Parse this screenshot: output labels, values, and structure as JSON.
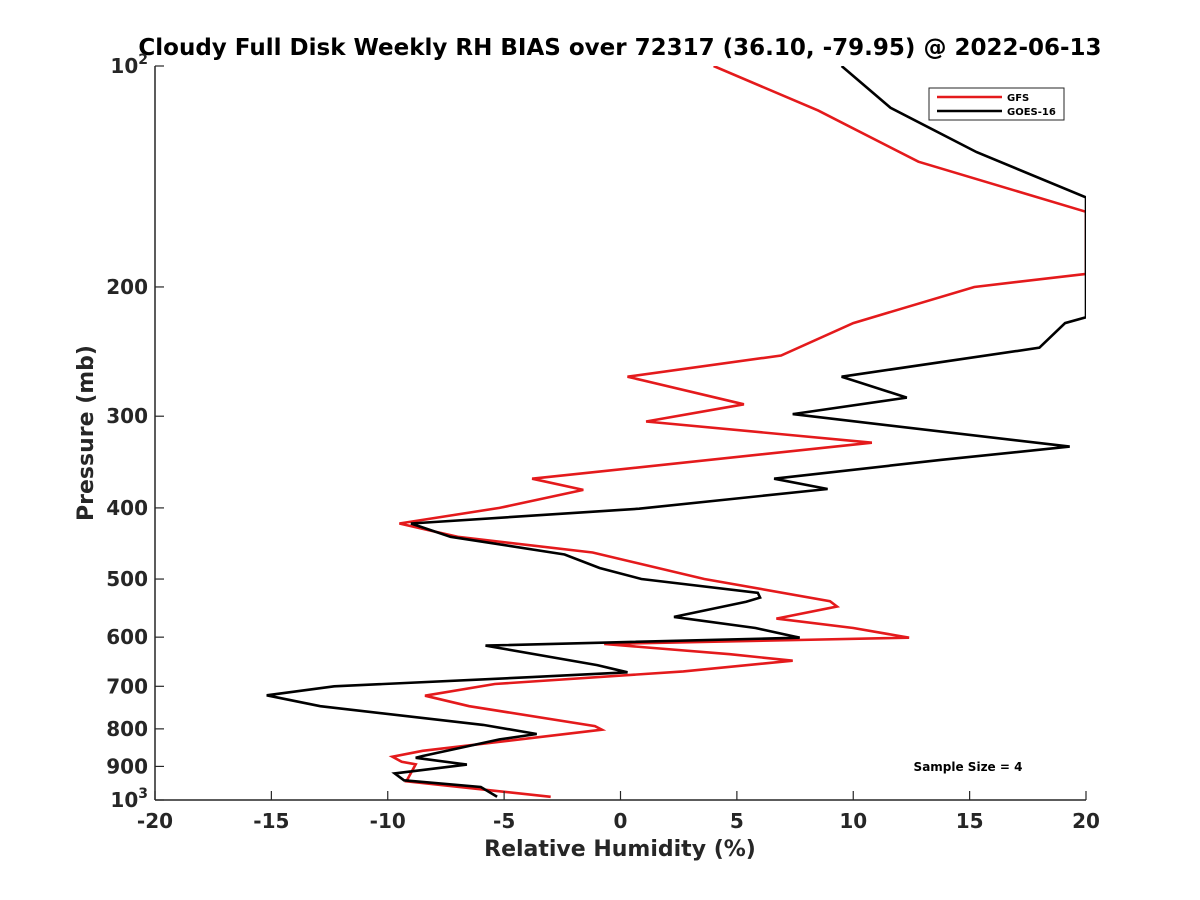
{
  "chart_data": {
    "type": "line",
    "title": "Cloudy Full Disk Weekly RH BIAS over 72317 (36.10, -79.95) @ 2022-06-13",
    "xlabel": "Relative Humidity (%)",
    "ylabel": "Pressure (mb)",
    "xlim": [
      -20,
      20
    ],
    "ylim": [
      100,
      1000
    ],
    "y_scale": "log",
    "y_reversed": true,
    "x_ticks": [
      "-20",
      "-15",
      "-10",
      "-5",
      "0",
      "5",
      "10",
      "15",
      "20"
    ],
    "y_ticks": [
      {
        "value": 100,
        "base": "10",
        "exp": "2"
      },
      {
        "value": 200,
        "label": "200"
      },
      {
        "value": 300,
        "label": "300"
      },
      {
        "value": 400,
        "label": "400"
      },
      {
        "value": 500,
        "label": "500"
      },
      {
        "value": 600,
        "label": "600"
      },
      {
        "value": 700,
        "label": "700"
      },
      {
        "value": 800,
        "label": "800"
      },
      {
        "value": 900,
        "label": "900"
      },
      {
        "value": 1000,
        "base": "10",
        "exp": "3"
      }
    ],
    "grid": false,
    "legend_position": "top-right",
    "annotation": "Sample Size = 4",
    "series": [
      {
        "name": "GFS",
        "color": "#e41a1c",
        "points": [
          [
            4.0,
            100
          ],
          [
            8.5,
            115
          ],
          [
            12.8,
            135
          ],
          [
            20.0,
            158
          ],
          [
            20.0,
            192
          ],
          [
            15.2,
            200
          ],
          [
            10.0,
            224
          ],
          [
            6.9,
            248
          ],
          [
            0.3,
            265
          ],
          [
            5.3,
            289
          ],
          [
            1.1,
            305
          ],
          [
            10.8,
            326
          ],
          [
            -3.8,
            365
          ],
          [
            -1.6,
            378
          ],
          [
            -5.2,
            400
          ],
          [
            -9.5,
            420
          ],
          [
            -7.0,
            438
          ],
          [
            -1.2,
            460
          ],
          [
            3.6,
            500
          ],
          [
            9.0,
            536
          ],
          [
            9.3,
            545
          ],
          [
            6.7,
            566
          ],
          [
            10.0,
            583
          ],
          [
            12.4,
            601
          ],
          [
            -0.7,
            613
          ],
          [
            4.7,
            633
          ],
          [
            7.4,
            646
          ],
          [
            2.7,
            668
          ],
          [
            -5.4,
            695
          ],
          [
            -8.4,
            721
          ],
          [
            -6.5,
            745
          ],
          [
            -1.1,
            793
          ],
          [
            -0.8,
            802
          ],
          [
            -8.5,
            857
          ],
          [
            -9.8,
            873
          ],
          [
            -9.4,
            887
          ],
          [
            -8.8,
            894
          ],
          [
            -9.2,
            943
          ],
          [
            -3.0,
            990
          ]
        ]
      },
      {
        "name": "GOES-16",
        "color": "#000000",
        "points": [
          [
            9.5,
            100
          ],
          [
            11.6,
            114
          ],
          [
            15.3,
            131
          ],
          [
            20.0,
            151
          ],
          [
            20.0,
            220
          ],
          [
            19.1,
            224
          ],
          [
            18.0,
            242
          ],
          [
            9.5,
            265
          ],
          [
            12.3,
            283
          ],
          [
            7.4,
            298
          ],
          [
            19.3,
            330
          ],
          [
            13.8,
            344
          ],
          [
            6.6,
            365
          ],
          [
            8.9,
            377
          ],
          [
            0.8,
            401
          ],
          [
            -9.0,
            420
          ],
          [
            -7.3,
            438
          ],
          [
            -2.4,
            463
          ],
          [
            -0.9,
            483
          ],
          [
            0.9,
            500
          ],
          [
            5.9,
            522
          ],
          [
            6.0,
            530
          ],
          [
            5.4,
            537
          ],
          [
            2.3,
            563
          ],
          [
            5.8,
            583
          ],
          [
            7.7,
            601
          ],
          [
            -5.8,
            616
          ],
          [
            -1.0,
            655
          ],
          [
            0.3,
            670
          ],
          [
            -3.8,
            680
          ],
          [
            -12.3,
            700
          ],
          [
            -15.2,
            720
          ],
          [
            -12.9,
            745
          ],
          [
            -5.9,
            790
          ],
          [
            -3.6,
            813
          ],
          [
            -5.2,
            827
          ],
          [
            -8.5,
            871
          ],
          [
            -8.8,
            876
          ],
          [
            -6.6,
            895
          ],
          [
            -9.7,
            920
          ],
          [
            -9.3,
            940
          ],
          [
            -6.0,
            960
          ],
          [
            -5.3,
            990
          ]
        ]
      }
    ]
  }
}
